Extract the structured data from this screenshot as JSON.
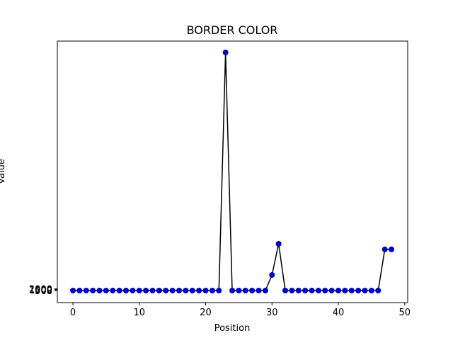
{
  "chart_data": {
    "type": "line",
    "title": "BORDER COLOR",
    "x_label": "Position",
    "y_label": "Value",
    "x": [
      0,
      1,
      2,
      3,
      4,
      5,
      6,
      7,
      8,
      9,
      10,
      11,
      12,
      13,
      14,
      15,
      16,
      17,
      18,
      19,
      20,
      21,
      22,
      23,
      24,
      25,
      26,
      27,
      28,
      29,
      30,
      31,
      32,
      33,
      34,
      35,
      36,
      37,
      38,
      39,
      40,
      41,
      42,
      43,
      44,
      45,
      46,
      47,
      48
    ],
    "series": [
      {
        "name": "Value",
        "color": "#000000",
        "marker_color": "#0000cc",
        "values": [
          508,
          508,
          508,
          508,
          508,
          508,
          508,
          508,
          508,
          508,
          508,
          508,
          508,
          508,
          508,
          508,
          508,
          508,
          508,
          508,
          508,
          508,
          508,
          200000,
          508,
          508,
          508,
          508,
          508,
          508,
          13600,
          39700,
          508,
          508,
          508,
          508,
          508,
          508,
          508,
          508,
          508,
          508,
          508,
          508,
          508,
          508,
          508,
          35000,
          35000
        ]
      }
    ],
    "xlim": [
      -2.35,
      50.45
    ],
    "xticks": [
      0,
      10,
      20,
      30,
      40,
      50
    ],
    "ylim": [
      -9586,
      209500
    ],
    "yticks": [
      508,
      1000,
      1500,
      2000
    ]
  }
}
